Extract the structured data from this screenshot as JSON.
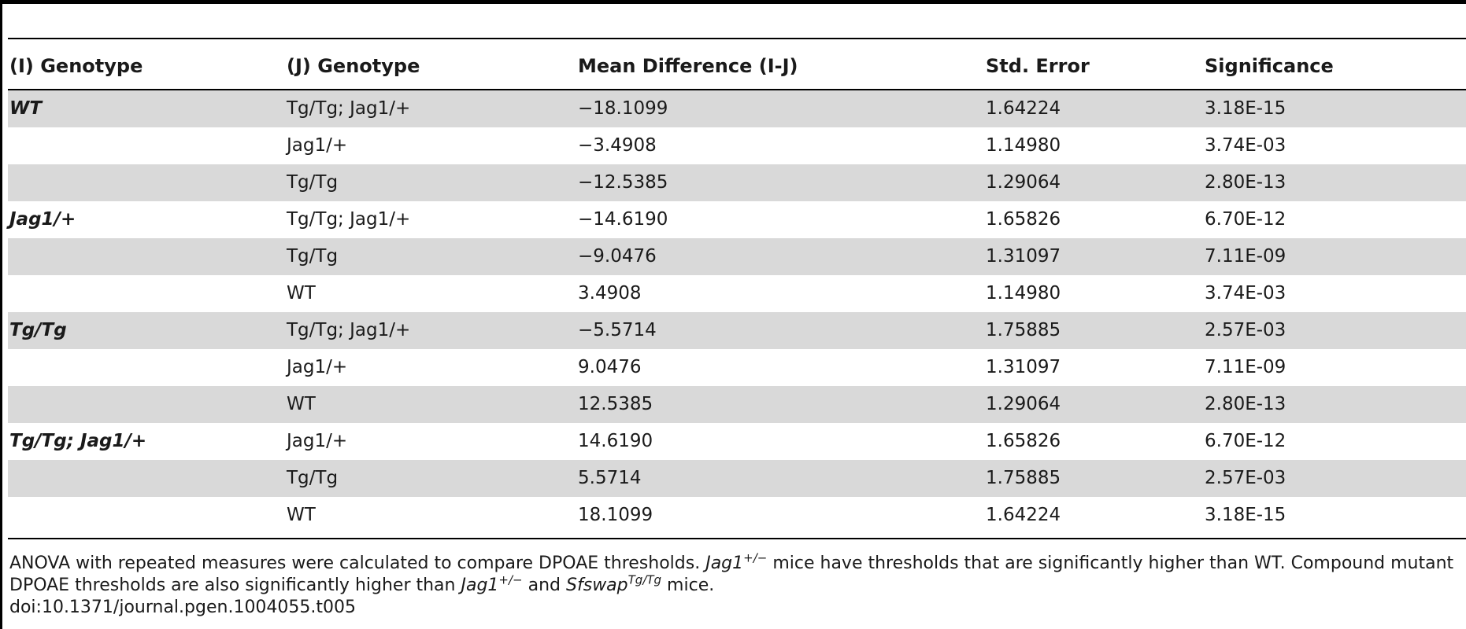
{
  "table": {
    "headers": [
      "(I) Genotype",
      "(J) Genotype",
      "Mean Difference (I-J)",
      "Std. Error",
      "Significance"
    ],
    "rows": [
      {
        "i": "WT",
        "j": "Tg/Tg; Jag1/+",
        "mean_diff": "−18.1099",
        "std_error": "1.64224",
        "significance": "3.18E-15"
      },
      {
        "i": "",
        "j": "Jag1/+",
        "mean_diff": "−3.4908",
        "std_error": "1.14980",
        "significance": "3.74E-03"
      },
      {
        "i": "",
        "j": "Tg/Tg",
        "mean_diff": "−12.5385",
        "std_error": "1.29064",
        "significance": "2.80E-13"
      },
      {
        "i": "Jag1/+",
        "j": "Tg/Tg; Jag1/+",
        "mean_diff": "−14.6190",
        "std_error": "1.65826",
        "significance": "6.70E-12"
      },
      {
        "i": "",
        "j": "Tg/Tg",
        "mean_diff": "−9.0476",
        "std_error": "1.31097",
        "significance": "7.11E-09"
      },
      {
        "i": "",
        "j": "WT",
        "mean_diff": "3.4908",
        "std_error": "1.14980",
        "significance": "3.74E-03"
      },
      {
        "i": "Tg/Tg",
        "j": "Tg/Tg; Jag1/+",
        "mean_diff": "−5.5714",
        "std_error": "1.75885",
        "significance": "2.57E-03"
      },
      {
        "i": "",
        "j": "Jag1/+",
        "mean_diff": "9.0476",
        "std_error": "1.31097",
        "significance": "7.11E-09"
      },
      {
        "i": "",
        "j": "WT",
        "mean_diff": "12.5385",
        "std_error": "1.29064",
        "significance": "2.80E-13"
      },
      {
        "i": "Tg/Tg; Jag1/+",
        "j": "Jag1/+",
        "mean_diff": "14.6190",
        "std_error": "1.65826",
        "significance": "6.70E-12"
      },
      {
        "i": "",
        "j": "Tg/Tg",
        "mean_diff": "5.5714",
        "std_error": "1.75885",
        "significance": "2.57E-03"
      },
      {
        "i": "",
        "j": "WT",
        "mean_diff": "18.1099",
        "std_error": "1.64224",
        "significance": "3.18E-15"
      }
    ]
  },
  "footnote": {
    "l1_a": "ANOVA with repeated measures were calculated to compare DPOAE thresholds. ",
    "l1_jag": "Jag1",
    "l1_sup": "+/−",
    "l1_b": " mice have thresholds that are significantly higher than WT. Compound mutant",
    "l2_a": "DPOAE thresholds are also significantly higher than ",
    "l2_jag": "Jag1",
    "l2_sup1": "+/−",
    "l2_b": " and ",
    "l2_sf": "Sfswap",
    "l2_sup2": "Tg/Tg",
    "l2_c": " mice.",
    "doi": "doi:10.1371/journal.pgen.1004055.t005"
  }
}
